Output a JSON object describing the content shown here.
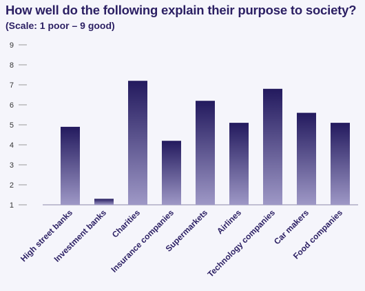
{
  "header": {
    "title": "How well do the following explain their purpose to society?",
    "subtitle": "(Scale: 1 poor – 9 good)"
  },
  "colors": {
    "bar_top": "#231a5e",
    "bar_bottom": "#9e98c6",
    "text": "#2b1f63",
    "axis": "#999999"
  },
  "chart_data": {
    "type": "bar",
    "title": "How well do the following explain their purpose to society?",
    "subtitle": "(Scale: 1 poor – 9 good)",
    "xlabel": "",
    "ylabel": "",
    "ylim": [
      1,
      9
    ],
    "yticks": [
      1,
      2,
      3,
      4,
      5,
      6,
      7,
      8,
      9
    ],
    "grid": false,
    "categories": [
      "High street banks",
      "Investment banks",
      "Charities",
      "Insurance companies",
      "Supermarkets",
      "Airlines",
      "Technology companies",
      "Car makers",
      "Food companies"
    ],
    "values": [
      4.9,
      1.3,
      7.2,
      4.2,
      6.2,
      5.1,
      6.8,
      5.6,
      5.1
    ]
  }
}
